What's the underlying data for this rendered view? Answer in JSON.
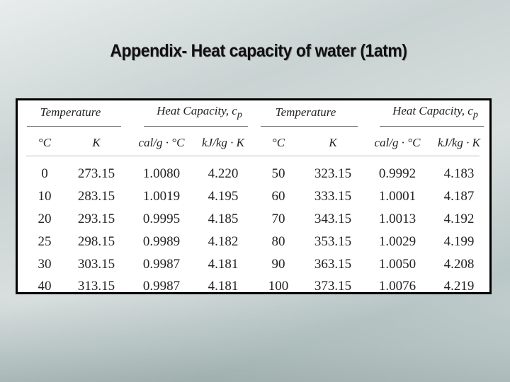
{
  "title": "Appendix- Heat capacity of water (1atm)",
  "table": {
    "group_headers": [
      {
        "text": "Temperature"
      },
      {
        "text": "Heat Capacity, c",
        "subscript": "p"
      },
      {
        "text": "Temperature"
      },
      {
        "text": "Heat Capacity, c",
        "subscript": "p"
      }
    ],
    "column_headers": [
      "°C",
      "K",
      "cal/g · °C",
      "kJ/kg · K",
      "°C",
      "K",
      "cal/g · °C",
      "kJ/kg · K"
    ],
    "rows": [
      [
        "0",
        "273.15",
        "1.0080",
        "4.220",
        "50",
        "323.15",
        "0.9992",
        "4.183"
      ],
      [
        "10",
        "283.15",
        "1.0019",
        "4.195",
        "60",
        "333.15",
        "1.0001",
        "4.187"
      ],
      [
        "20",
        "293.15",
        "0.9995",
        "4.185",
        "70",
        "343.15",
        "1.0013",
        "4.192"
      ],
      [
        "25",
        "298.15",
        "0.9989",
        "4.182",
        "80",
        "353.15",
        "1.0029",
        "4.199"
      ],
      [
        "30",
        "303.15",
        "0.9987",
        "4.181",
        "90",
        "363.15",
        "1.0050",
        "4.208"
      ],
      [
        "40",
        "313.15",
        "0.9987",
        "4.181",
        "100",
        "373.15",
        "1.0076",
        "4.219"
      ]
    ]
  }
}
